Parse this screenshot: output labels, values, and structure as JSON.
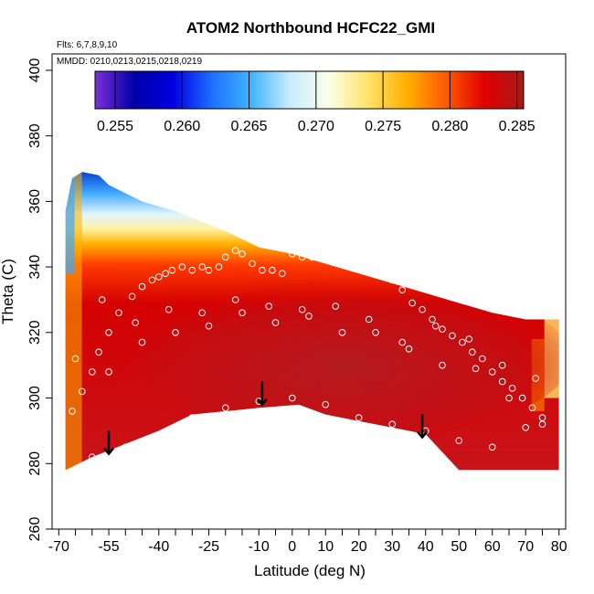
{
  "chart_data": {
    "type": "heatmap",
    "title": "ATOM2 Northbound HCFC22_GMI",
    "notes": {
      "flights": "Flts: 6,7,8,9,10",
      "dates": "MMDD: 0210,0213,0215,0218,0219"
    },
    "xlabel": "Latitude (deg N)",
    "ylabel": "Theta (C)",
    "xlim": [
      -72,
      82
    ],
    "ylim": [
      260,
      405
    ],
    "xticks": [
      -70,
      -55,
      -40,
      -25,
      -10,
      0,
      10,
      20,
      30,
      40,
      50,
      60,
      70,
      80
    ],
    "xtick_labels": [
      "-70",
      "-55",
      "-40",
      "-25",
      "-10",
      "0",
      "10",
      "20",
      "30",
      "40",
      "50",
      "60",
      "70",
      "80"
    ],
    "xminor_ticks": [
      -65,
      -60,
      -50,
      -45,
      -35,
      -30,
      -20,
      -15,
      -5,
      5,
      15,
      25,
      35,
      45,
      55,
      65,
      75
    ],
    "yticks": [
      260,
      280,
      300,
      320,
      340,
      360,
      380,
      400
    ],
    "ytick_labels": [
      "260",
      "280",
      "300",
      "320",
      "340",
      "360",
      "380",
      "400"
    ],
    "colorbar": {
      "min": 0.2535,
      "max": 0.2855,
      "ticks": [
        0.255,
        0.26,
        0.265,
        0.27,
        0.275,
        0.28,
        0.285
      ],
      "tick_labels": [
        "0.255",
        "0.260",
        "0.265",
        "0.270",
        "0.275",
        "0.280",
        "0.285"
      ],
      "colors": [
        "#7b2fd8",
        "#0000a8",
        "#0000e0",
        "#1e6fff",
        "#3fb4ff",
        "#c8ecff",
        "#fbffe8",
        "#ffe36a",
        "#ffb000",
        "#ff5a00",
        "#e00000",
        "#a81a1a"
      ]
    },
    "field": {
      "upper_boundary": [
        [
          -68,
          357
        ],
        [
          -66,
          367
        ],
        [
          -63,
          369
        ],
        [
          -58,
          368
        ],
        [
          -55,
          365
        ],
        [
          -45,
          360
        ],
        [
          -35,
          357
        ],
        [
          -20,
          351
        ],
        [
          -10,
          346
        ],
        [
          0,
          344
        ],
        [
          10,
          341
        ],
        [
          20,
          338
        ],
        [
          30,
          335
        ],
        [
          40,
          332
        ],
        [
          50,
          329
        ],
        [
          60,
          326
        ],
        [
          70,
          324
        ],
        [
          78,
          324
        ]
      ],
      "lower_boundary": [
        [
          -68,
          278
        ],
        [
          -60,
          282
        ],
        [
          -50,
          286
        ],
        [
          -40,
          290
        ],
        [
          -30,
          295
        ],
        [
          -10,
          297
        ],
        [
          2,
          298
        ],
        [
          10,
          295
        ],
        [
          20,
          293
        ],
        [
          30,
          291
        ],
        [
          40,
          289
        ],
        [
          50,
          278
        ],
        [
          75,
          278
        ],
        [
          80,
          278
        ]
      ],
      "right_edge_theta_range": [
        278,
        324
      ]
    },
    "series": [
      {
        "x": [
          -66,
          -63,
          -60,
          -58,
          -55,
          -52,
          -48,
          -45,
          -42,
          -40,
          -38,
          -36,
          -33,
          -30,
          -27,
          -25,
          -22,
          -20,
          -17,
          -15,
          -12,
          -9,
          -6,
          -3,
          0,
          3,
          6,
          9,
          12,
          15,
          18,
          21,
          24,
          27,
          30,
          33,
          36,
          39,
          42,
          45,
          48,
          51,
          54,
          57,
          60,
          63,
          66,
          69,
          72,
          75,
          -60,
          -50,
          -40,
          -30,
          -20,
          -10,
          0,
          10,
          20,
          30,
          40,
          50,
          60,
          70,
          -57,
          -47,
          -37,
          -27,
          -17,
          -7,
          3,
          13,
          23,
          33,
          43,
          53,
          63,
          73,
          -65,
          -55,
          -45,
          -35,
          -25,
          -15,
          -5,
          5,
          15,
          25,
          35,
          45,
          55,
          65,
          75
        ],
        "y": [
          296,
          302,
          308,
          314,
          320,
          326,
          331,
          334,
          336,
          337,
          338,
          339,
          340,
          339,
          340,
          339,
          340,
          343,
          345,
          344,
          341,
          339,
          339,
          338,
          344,
          343,
          343,
          343,
          344,
          344,
          343,
          342,
          346,
          340,
          336,
          333,
          329,
          327,
          324,
          321,
          319,
          317,
          314,
          312,
          308,
          305,
          303,
          300,
          297,
          294,
          282,
          285,
          288,
          294,
          297,
          299,
          300,
          298,
          294,
          292,
          290,
          287,
          285,
          291,
          330,
          323,
          327,
          326,
          330,
          328,
          327,
          328,
          324,
          317,
          322,
          318,
          310,
          306,
          312,
          308,
          317,
          320,
          322,
          326,
          323,
          325,
          320,
          320,
          315,
          310,
          309,
          300,
          292
        ]
      }
    ],
    "annotations": [
      {
        "type": "arrow",
        "x": -55,
        "y_top": 290,
        "y_bottom": 283
      },
      {
        "type": "arrow",
        "x": -9,
        "y_top": 305,
        "y_bottom": 298
      },
      {
        "type": "arrow",
        "x": 39,
        "y_top": 295,
        "y_bottom": 288
      }
    ],
    "grid": false,
    "legend": "top"
  }
}
